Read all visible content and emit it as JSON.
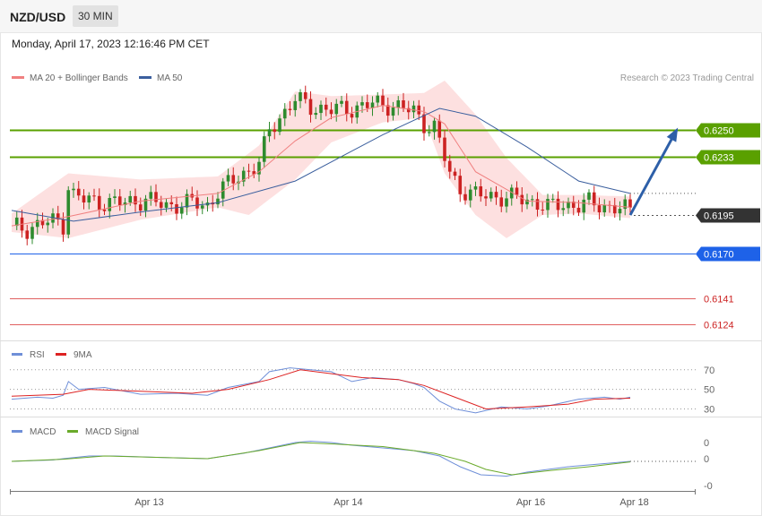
{
  "header": {
    "pair": "NZD/USD",
    "timeframe": "30 MIN",
    "datetime": "Monday, April 17, 2023 12:16:46 PM CET"
  },
  "legend": {
    "ma20": "MA 20 + Bollinger Bands",
    "ma50": "MA 50",
    "credit": "Research © 2023 Trading Central",
    "rsi": "RSI",
    "rsi9": "9MA",
    "macd": "MACD",
    "macd_signal": "MACD Signal"
  },
  "colors": {
    "ma20": "#f08080",
    "ma50": "#3b5f9e",
    "bollinger_fill": "#fde0e0",
    "candle_up": "#2e8b2e",
    "candle_down": "#cc2222",
    "resistance": "#5aa000",
    "support_blue": "#1e62e8",
    "support_red": "#e06060",
    "last_price": "#333333",
    "arrow": "#2d5fa8",
    "rsi": "#6f8fd8",
    "rsi9": "#dd2222",
    "macd": "#6f8fd8",
    "macd_signal": "#6aaa2a"
  },
  "chart_data": [
    {
      "type": "candlestick",
      "title": "NZD/USD",
      "timeframe": "30 MIN",
      "ylim": [
        0.6115,
        0.6282
      ],
      "x_ticks": [
        "Apr 13",
        "Apr 14",
        "Apr 16",
        "Apr 18"
      ],
      "last_price": 0.6195,
      "levels": [
        {
          "value": 0.625,
          "label": "0.6250",
          "role": "resistance"
        },
        {
          "value": 0.6233,
          "label": "0.6233",
          "role": "resistance"
        },
        {
          "value": 0.6195,
          "label": "0.6195",
          "role": "last"
        },
        {
          "value": 0.617,
          "label": "0.6170",
          "role": "support"
        },
        {
          "value": 0.6141,
          "label": "0.6141",
          "role": "support-minor"
        },
        {
          "value": 0.6124,
          "label": "0.6124",
          "role": "support-minor"
        }
      ],
      "close_path": [
        [
          0,
          0.6188
        ],
        [
          3,
          0.6186
        ],
        [
          6,
          0.619
        ],
        [
          9,
          0.6191
        ],
        [
          10,
          0.6189
        ],
        [
          11,
          0.6214
        ],
        [
          12,
          0.6208
        ],
        [
          14,
          0.6205
        ],
        [
          18,
          0.6203
        ],
        [
          22,
          0.6203
        ],
        [
          26,
          0.6205
        ],
        [
          30,
          0.6201
        ],
        [
          35,
          0.6203
        ],
        [
          38,
          0.6201
        ],
        [
          40,
          0.621
        ],
        [
          44,
          0.622
        ],
        [
          48,
          0.6228
        ],
        [
          50,
          0.625
        ],
        [
          53,
          0.6262
        ],
        [
          55,
          0.627
        ],
        [
          58,
          0.6265
        ],
        [
          62,
          0.6263
        ],
        [
          66,
          0.6264
        ],
        [
          70,
          0.6267
        ],
        [
          74,
          0.6266
        ],
        [
          78,
          0.6262
        ],
        [
          80,
          0.6254
        ],
        [
          82,
          0.6252
        ],
        [
          84,
          0.6232
        ],
        [
          85,
          0.6222
        ],
        [
          87,
          0.6212
        ],
        [
          90,
          0.6208
        ],
        [
          94,
          0.6207
        ],
        [
          98,
          0.6206
        ],
        [
          102,
          0.6203
        ],
        [
          104,
          0.62
        ],
        [
          107,
          0.6202
        ],
        [
          110,
          0.6201
        ],
        [
          112,
          0.6203
        ],
        [
          115,
          0.6201
        ],
        [
          118,
          0.6199
        ],
        [
          120,
          0.6198
        ]
      ],
      "ma20_path": [
        [
          0,
          0.6188
        ],
        [
          11,
          0.6194
        ],
        [
          25,
          0.6204
        ],
        [
          40,
          0.6209
        ],
        [
          48,
          0.6223
        ],
        [
          55,
          0.6243
        ],
        [
          62,
          0.6258
        ],
        [
          72,
          0.6266
        ],
        [
          80,
          0.6262
        ],
        [
          84,
          0.6254
        ],
        [
          90,
          0.6223
        ],
        [
          100,
          0.6204
        ],
        [
          110,
          0.6203
        ],
        [
          120,
          0.62
        ]
      ],
      "bollinger_upper": [
        [
          0,
          0.6196
        ],
        [
          11,
          0.6222
        ],
        [
          25,
          0.6218
        ],
        [
          40,
          0.622
        ],
        [
          48,
          0.624
        ],
        [
          55,
          0.6275
        ],
        [
          62,
          0.6272
        ],
        [
          72,
          0.6273
        ],
        [
          80,
          0.6274
        ],
        [
          84,
          0.6282
        ],
        [
          90,
          0.626
        ],
        [
          96,
          0.6232
        ],
        [
          103,
          0.6208
        ],
        [
          110,
          0.6208
        ],
        [
          120,
          0.6207
        ]
      ],
      "bollinger_lower": [
        [
          0,
          0.6184
        ],
        [
          11,
          0.618
        ],
        [
          25,
          0.6192
        ],
        [
          40,
          0.62
        ],
        [
          46,
          0.6195
        ],
        [
          55,
          0.6218
        ],
        [
          62,
          0.6242
        ],
        [
          72,
          0.6255
        ],
        [
          80,
          0.6258
        ],
        [
          84,
          0.6222
        ],
        [
          90,
          0.6195
        ],
        [
          96,
          0.618
        ],
        [
          103,
          0.6195
        ],
        [
          110,
          0.6196
        ],
        [
          120,
          0.6193
        ]
      ],
      "ma50_path": [
        [
          0,
          0.6198
        ],
        [
          12,
          0.6191
        ],
        [
          25,
          0.6197
        ],
        [
          40,
          0.6203
        ],
        [
          55,
          0.6217
        ],
        [
          72,
          0.6247
        ],
        [
          83,
          0.6264
        ],
        [
          90,
          0.6259
        ],
        [
          100,
          0.6239
        ],
        [
          110,
          0.6217
        ],
        [
          120,
          0.6209
        ]
      ],
      "forecast_arrow": {
        "from": [
          120,
          0.6195
        ],
        "to": [
          129,
          0.625
        ]
      }
    },
    {
      "type": "line",
      "title": "RSI",
      "ylim": [
        25,
        78
      ],
      "y_ticks": [
        "70",
        "50",
        "30"
      ],
      "series": [
        {
          "name": "RSI",
          "points": [
            [
              0,
              40
            ],
            [
              5,
              42
            ],
            [
              8,
              41
            ],
            [
              10,
              44
            ],
            [
              11,
              58
            ],
            [
              13,
              50
            ],
            [
              18,
              52
            ],
            [
              25,
              45
            ],
            [
              32,
              46
            ],
            [
              38,
              44
            ],
            [
              42,
              52
            ],
            [
              48,
              58
            ],
            [
              50,
              68
            ],
            [
              54,
              72
            ],
            [
              58,
              70
            ],
            [
              62,
              68
            ],
            [
              66,
              58
            ],
            [
              70,
              62
            ],
            [
              75,
              60
            ],
            [
              78,
              56
            ],
            [
              80,
              52
            ],
            [
              83,
              38
            ],
            [
              86,
              30
            ],
            [
              90,
              26
            ],
            [
              95,
              32
            ],
            [
              100,
              30
            ],
            [
              104,
              33
            ],
            [
              110,
              40
            ],
            [
              115,
              42
            ],
            [
              118,
              40
            ],
            [
              120,
              42
            ]
          ]
        },
        {
          "name": "9MA",
          "points": [
            [
              0,
              43
            ],
            [
              10,
              45
            ],
            [
              15,
              50
            ],
            [
              25,
              48
            ],
            [
              35,
              46
            ],
            [
              42,
              50
            ],
            [
              50,
              60
            ],
            [
              56,
              70
            ],
            [
              62,
              66
            ],
            [
              68,
              62
            ],
            [
              75,
              60
            ],
            [
              80,
              54
            ],
            [
              86,
              42
            ],
            [
              92,
              30
            ],
            [
              100,
              32
            ],
            [
              108,
              35
            ],
            [
              113,
              40
            ],
            [
              120,
              41
            ]
          ]
        }
      ]
    },
    {
      "type": "line",
      "title": "MACD",
      "y_ticks": [
        "0",
        "0",
        "-0"
      ],
      "ylim": [
        -0.0012,
        0.0008
      ],
      "series": [
        {
          "name": "MACD",
          "points": [
            [
              0,
              -0.0001
            ],
            [
              8,
              -5e-05
            ],
            [
              10,
              0.0
            ],
            [
              15,
              0.0001
            ],
            [
              20,
              0.0001
            ],
            [
              28,
              5e-05
            ],
            [
              38,
              0.0
            ],
            [
              45,
              0.0002
            ],
            [
              50,
              0.0004
            ],
            [
              55,
              0.0006
            ],
            [
              58,
              0.00065
            ],
            [
              62,
              0.0006
            ],
            [
              66,
              0.0005
            ],
            [
              72,
              0.0004
            ],
            [
              78,
              0.0003
            ],
            [
              83,
              0.0001
            ],
            [
              87,
              -0.0003
            ],
            [
              91,
              -0.0006
            ],
            [
              96,
              -0.00065
            ],
            [
              100,
              -0.0005
            ],
            [
              108,
              -0.0003
            ],
            [
              114,
              -0.0002
            ],
            [
              120,
              -0.0001
            ]
          ]
        },
        {
          "name": "MACD Signal",
          "points": [
            [
              0,
              -0.0001
            ],
            [
              10,
              -2e-05
            ],
            [
              18,
              0.0001
            ],
            [
              28,
              5e-05
            ],
            [
              38,
              0.0
            ],
            [
              48,
              0.0003
            ],
            [
              56,
              0.0006
            ],
            [
              62,
              0.00055
            ],
            [
              72,
              0.00045
            ],
            [
              82,
              0.0002
            ],
            [
              88,
              -0.0001
            ],
            [
              92,
              -0.0004
            ],
            [
              97,
              -0.0006
            ],
            [
              104,
              -0.00045
            ],
            [
              112,
              -0.0003
            ],
            [
              120,
              -0.00012
            ]
          ]
        }
      ]
    }
  ]
}
